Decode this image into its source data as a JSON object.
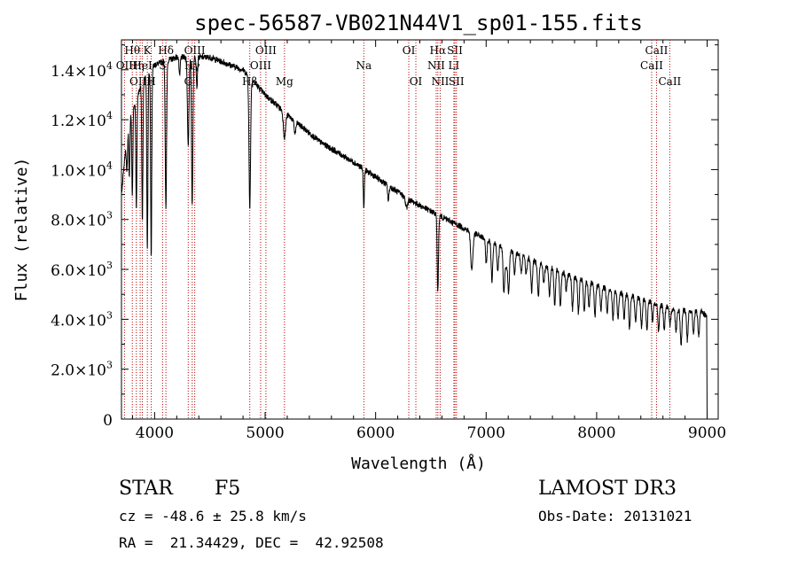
{
  "chart_data": {
    "type": "line",
    "title": "spec-56587-VB021N44V1_sp01-155.fits",
    "xlabel": "Wavelength (Å)",
    "ylabel": "Flux (relative)",
    "xlim": [
      3700,
      9100
    ],
    "ylim": [
      0,
      15200
    ],
    "x_ticks": [
      {
        "value": 4000,
        "label": "4000"
      },
      {
        "value": 5000,
        "label": "5000"
      },
      {
        "value": 6000,
        "label": "6000"
      },
      {
        "value": 7000,
        "label": "7000"
      },
      {
        "value": 8000,
        "label": "8000"
      },
      {
        "value": 9000,
        "label": "9000"
      }
    ],
    "y_ticks": [
      {
        "value": 0,
        "mant": "0",
        "exp": ""
      },
      {
        "value": 2000,
        "mant": "2.0×10",
        "exp": "3"
      },
      {
        "value": 4000,
        "mant": "4.0×10",
        "exp": "3"
      },
      {
        "value": 6000,
        "mant": "6.0×10",
        "exp": "3"
      },
      {
        "value": 8000,
        "mant": "8.0×10",
        "exp": "3"
      },
      {
        "value": 10000,
        "mant": "1.0×10",
        "exp": "4"
      },
      {
        "value": 12000,
        "mant": "1.2×10",
        "exp": "4"
      },
      {
        "value": 14000,
        "mant": "1.4×10",
        "exp": "4"
      }
    ],
    "line_markers": [
      {
        "name": "Hθ",
        "wave": 3798,
        "row": 0
      },
      {
        "name": "OII",
        "wave": 3727,
        "row": 1
      },
      {
        "name": "Hη",
        "wave": 3835,
        "row": 1
      },
      {
        "name": "OIII",
        "wave": 3869,
        "row": 2
      },
      {
        "name": "K",
        "wave": 3934,
        "row": 0
      },
      {
        "name": "HeI",
        "wave": 3889,
        "row": 1
      },
      {
        "name": "H",
        "wave": 3969,
        "row": 2
      },
      {
        "name": "Hδ",
        "wave": 4102,
        "row": 0
      },
      {
        "name": "S",
        "wave": 4072,
        "row": 1
      },
      {
        "name": "OIII",
        "wave": 4363,
        "row": 0
      },
      {
        "name": "G",
        "wave": 4304,
        "row": 2
      },
      {
        "name": "Hγ",
        "wave": 4340,
        "row": 1
      },
      {
        "name": "OIII",
        "wave": 5007,
        "row": 0
      },
      {
        "name": "OIII",
        "wave": 4959,
        "row": 1
      },
      {
        "name": "Hβ",
        "wave": 4861,
        "row": 2
      },
      {
        "name": "Mg",
        "wave": 5175,
        "row": 2
      },
      {
        "name": "Na",
        "wave": 5893,
        "row": 1
      },
      {
        "name": "OI",
        "wave": 6300,
        "row": 0
      },
      {
        "name": "OI",
        "wave": 6364,
        "row": 2
      },
      {
        "name": "Hα",
        "wave": 6563,
        "row": 0
      },
      {
        "name": "NII",
        "wave": 6548,
        "row": 1
      },
      {
        "name": "NII",
        "wave": 6584,
        "row": 2
      },
      {
        "name": "SII",
        "wave": 6717,
        "row": 0
      },
      {
        "name": "LI",
        "wave": 6708,
        "row": 1
      },
      {
        "name": "SII",
        "wave": 6731,
        "row": 2
      },
      {
        "name": "CaII",
        "wave": 8542,
        "row": 0
      },
      {
        "name": "CaII",
        "wave": 8498,
        "row": 1
      },
      {
        "name": "CaII",
        "wave": 8662,
        "row": 2
      }
    ],
    "continuum": [
      [
        3700,
        9000
      ],
      [
        3760,
        12000
      ],
      [
        3900,
        13600
      ],
      [
        4000,
        14200
      ],
      [
        4200,
        14500
      ],
      [
        4500,
        14500
      ],
      [
        4800,
        14000
      ],
      [
        5000,
        13000
      ],
      [
        5200,
        12200
      ],
      [
        5500,
        11100
      ],
      [
        5800,
        10300
      ],
      [
        6000,
        9700
      ],
      [
        6300,
        8800
      ],
      [
        6600,
        8100
      ],
      [
        7000,
        7200
      ],
      [
        7500,
        6200
      ],
      [
        8000,
        5350
      ],
      [
        8500,
        4700
      ],
      [
        8700,
        4400
      ],
      [
        8950,
        4300
      ],
      [
        9000,
        4100
      ]
    ],
    "absorption_features": [
      [
        3750,
        1500,
        6
      ],
      [
        3771,
        2500,
        5
      ],
      [
        3798,
        3500,
        5
      ],
      [
        3835,
        4500,
        5
      ],
      [
        3889,
        5500,
        5
      ],
      [
        3934,
        7000,
        5
      ],
      [
        3969,
        7500,
        5
      ],
      [
        4102,
        6000,
        6
      ],
      [
        4226,
        800,
        5
      ],
      [
        4304,
        3500,
        7
      ],
      [
        4340,
        6000,
        6
      ],
      [
        4383,
        1200,
        5
      ],
      [
        4861,
        5200,
        7
      ],
      [
        5175,
        1000,
        10
      ],
      [
        5270,
        500,
        8
      ],
      [
        5893,
        1500,
        5
      ],
      [
        6115,
        600,
        6
      ],
      [
        6280,
        400,
        10
      ],
      [
        6563,
        3000,
        6
      ],
      [
        6870,
        1500,
        10
      ],
      [
        7180,
        800,
        15
      ]
    ],
    "telluric_start": 7000,
    "telluric_end": 8950,
    "telluric_period": 52,
    "telluric_depth": 1100,
    "telluric_width": 7,
    "noise_amplitude": 120,
    "end_drop": {
      "wave": 9000,
      "value": 0
    }
  },
  "info": {
    "class_label": "STAR",
    "subclass": "F5",
    "survey": "LAMOST DR3",
    "cz": "cz = -48.6 ± 25.8 km/s",
    "obs_date": "Obs-Date: 20131021",
    "coords": "RA =  21.34429, DEC =  42.92508"
  }
}
